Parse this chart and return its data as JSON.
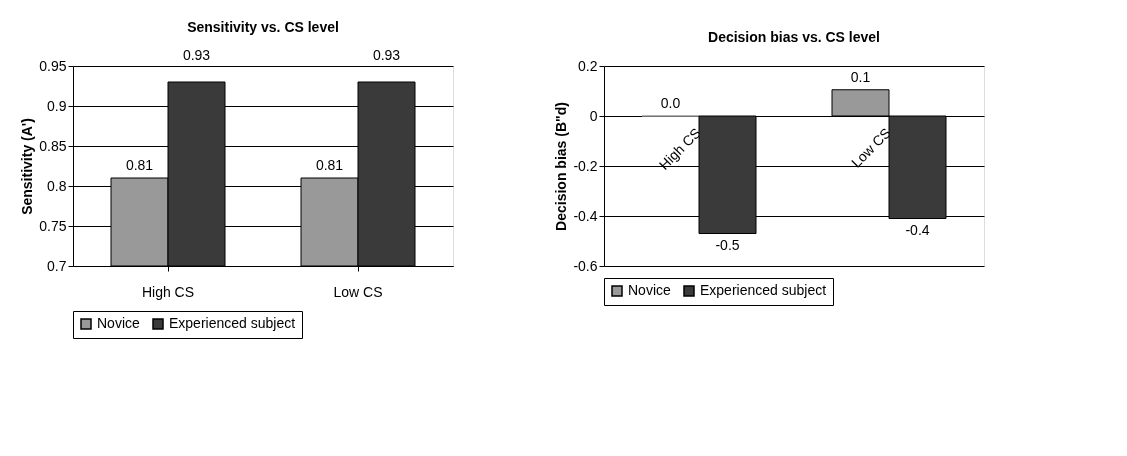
{
  "chart_data": [
    {
      "type": "bar",
      "title": "Sensitivity vs. CS level",
      "ylabel": "Sensitivity (A')",
      "categories": [
        "High CS",
        "Low CS"
      ],
      "series": [
        {
          "name": "Novice",
          "color": "#999999",
          "values": [
            0.81,
            0.81
          ]
        },
        {
          "name": "Experienced subject",
          "color": "#3a3a3a",
          "values": [
            0.93,
            0.93
          ]
        }
      ],
      "ylim": [
        0.7,
        0.95
      ],
      "yticks": [
        0.7,
        0.75,
        0.8,
        0.85,
        0.9,
        0.95
      ],
      "grid": "y",
      "legend": "bottom",
      "data_labels": true
    },
    {
      "type": "bar",
      "title": "Decision bias vs. CS level",
      "ylabel": "Decision bias (B\"d)",
      "categories": [
        "High CS",
        "Low CS"
      ],
      "series": [
        {
          "name": "Novice",
          "color": "#999999",
          "values": [
            0.0,
            0.105
          ],
          "value_labels": [
            "0.0",
            "0.1"
          ]
        },
        {
          "name": "Experienced subject",
          "color": "#3a3a3a",
          "values": [
            -0.47,
            -0.41
          ],
          "value_labels": [
            "-0.5",
            "-0.4"
          ]
        }
      ],
      "ylim": [
        -0.6,
        0.2
      ],
      "yticks": [
        -0.6,
        -0.4,
        -0.2,
        0,
        0.2
      ],
      "grid": "y",
      "legend": "bottom"
    }
  ]
}
